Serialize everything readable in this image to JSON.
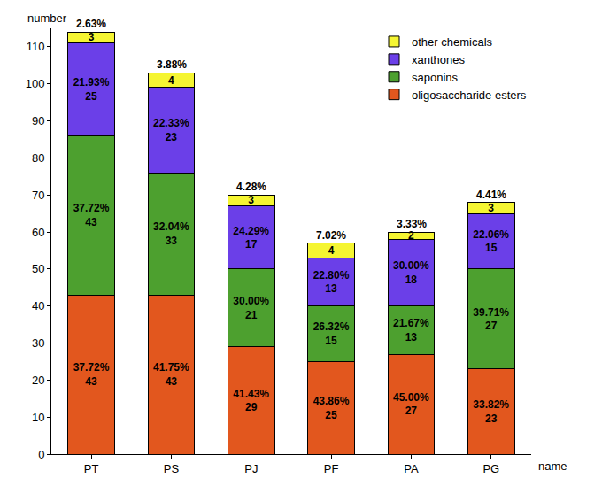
{
  "chart_data": {
    "type": "bar",
    "stacked": true,
    "data_labels": true,
    "grid": false,
    "legend": "top right",
    "x_label": "name",
    "y_label": "number",
    "categories": [
      "PT",
      "PS",
      "PJ",
      "PF",
      "PA",
      "PG"
    ],
    "ylim": [
      0,
      115
    ],
    "yticks": [
      0,
      10,
      20,
      30,
      40,
      50,
      60,
      70,
      80,
      90,
      100,
      110
    ],
    "series": [
      {
        "name": "oligosaccharide esters",
        "color": "#E2571E",
        "values": [
          43,
          43,
          29,
          25,
          27,
          23
        ],
        "percent_labels": [
          "37.72%",
          "41.75%",
          "41.43%",
          "43.86%",
          "45.00%",
          "33.82%"
        ]
      },
      {
        "name": "saponins",
        "color": "#4DA02F",
        "values": [
          43,
          33,
          21,
          15,
          13,
          27
        ],
        "percent_labels": [
          "37.72%",
          "32.04%",
          "30.00%",
          "26.32%",
          "21.67%",
          "39.71%"
        ]
      },
      {
        "name": "xanthones",
        "color": "#6B3FE8",
        "values": [
          25,
          23,
          17,
          13,
          18,
          15
        ],
        "percent_labels": [
          "21.93%",
          "22.33%",
          "24.29%",
          "22.80%",
          "30.00%",
          "22.06%"
        ]
      },
      {
        "name": "other chemicals",
        "color": "#F5F532",
        "values": [
          3,
          4,
          3,
          4,
          2,
          3
        ],
        "percent_labels": [
          "2.63%",
          "3.88%",
          "4.28%",
          "7.02%",
          "3.33%",
          "4.41%"
        ]
      }
    ]
  }
}
